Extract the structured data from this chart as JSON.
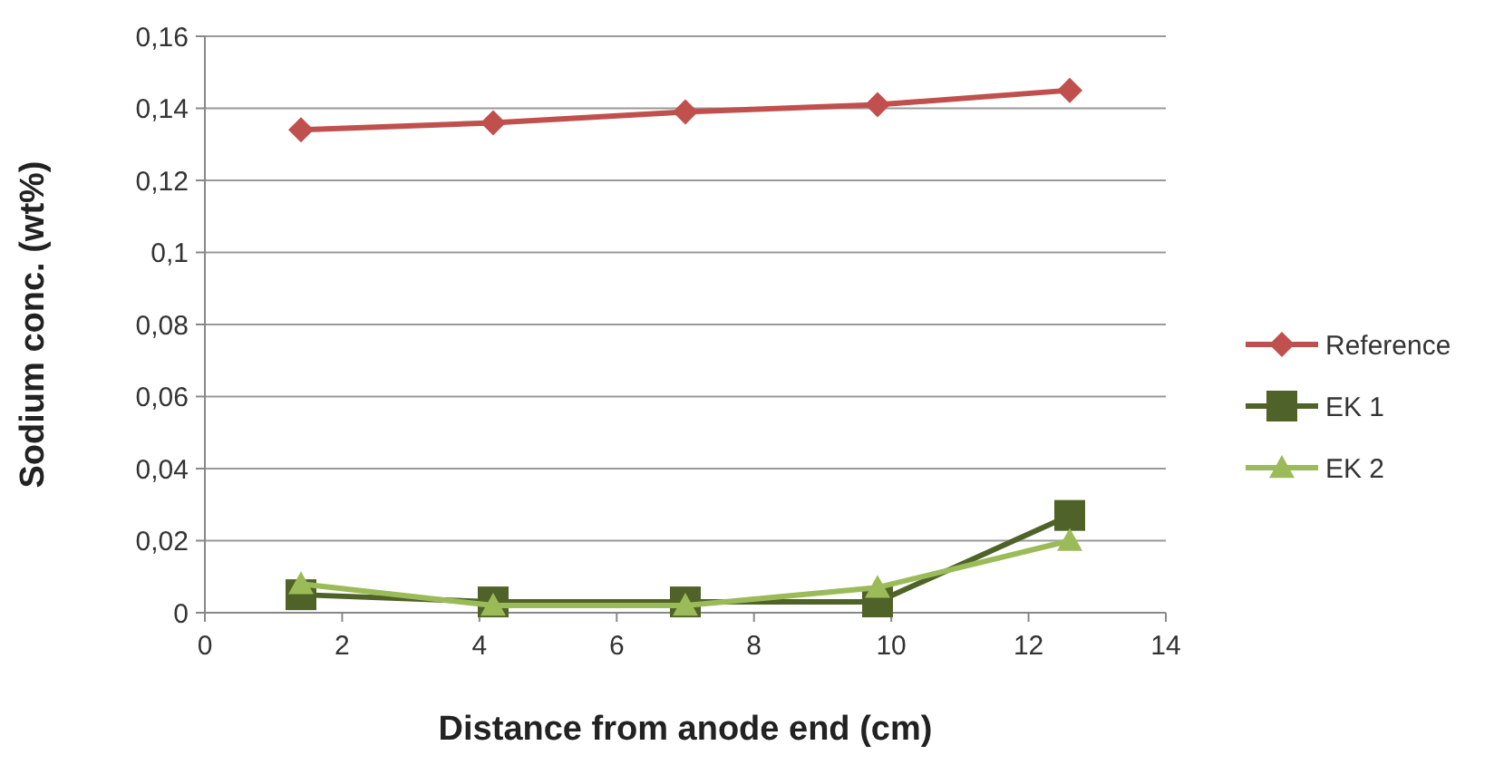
{
  "chart_data": {
    "type": "line",
    "xlabel": "Distance from anode end (cm)",
    "ylabel": "Sodium conc. (wt%)",
    "x": [
      1.4,
      4.2,
      7,
      9.8,
      12.6
    ],
    "series": [
      {
        "name": "Reference",
        "color": "#c0504d",
        "marker": "diamond",
        "values": [
          0.134,
          0.136,
          0.139,
          0.141,
          0.145
        ]
      },
      {
        "name": "EK 1",
        "color": "#4f6228",
        "marker": "square",
        "values": [
          0.005,
          0.003,
          0.003,
          0.003,
          0.027
        ]
      },
      {
        "name": "EK 2",
        "color": "#9bbb59",
        "marker": "triangle",
        "values": [
          0.008,
          0.002,
          0.002,
          0.007,
          0.02
        ]
      }
    ],
    "xlim": [
      0,
      14
    ],
    "xticks": [
      0,
      2,
      4,
      6,
      8,
      10,
      12,
      14
    ],
    "ylim": [
      0,
      0.16
    ],
    "yticks": [
      {
        "value": 0,
        "label": "0"
      },
      {
        "value": 0.02,
        "label": "0,02"
      },
      {
        "value": 0.04,
        "label": "0,04"
      },
      {
        "value": 0.06,
        "label": "0,06"
      },
      {
        "value": 0.08,
        "label": "0,08"
      },
      {
        "value": 0.1,
        "label": "0,1"
      },
      {
        "value": 0.12,
        "label": "0,12"
      },
      {
        "value": 0.14,
        "label": "0,14"
      },
      {
        "value": 0.16,
        "label": "0,16"
      }
    ],
    "grid": "y",
    "legend": "right"
  }
}
